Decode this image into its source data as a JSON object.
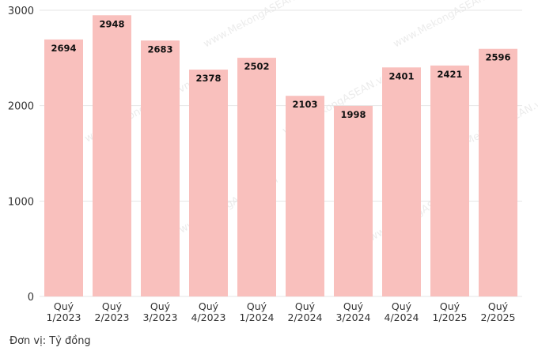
{
  "chart_data": {
    "type": "bar",
    "categories": [
      [
        "Quý",
        "1/2023"
      ],
      [
        "Quý",
        "2/2023"
      ],
      [
        "Quý",
        "3/2023"
      ],
      [
        "Quý",
        "4/2023"
      ],
      [
        "Quý",
        "1/2024"
      ],
      [
        "Quý",
        "2/2024"
      ],
      [
        "Quý",
        "3/2024"
      ],
      [
        "Quý",
        "4/2024"
      ],
      [
        "Quý",
        "1/2025"
      ],
      [
        "Quý",
        "2/2025"
      ]
    ],
    "values": [
      2694,
      2948,
      2683,
      2378,
      2502,
      2103,
      1998,
      2401,
      2421,
      2596
    ],
    "ylim": [
      0,
      3000
    ],
    "yticks": [
      0,
      1000,
      2000,
      3000
    ],
    "grid": true,
    "bar_color": "#f9c0bd",
    "grid_color": "#e6e6e6",
    "data_labels": true
  },
  "unit_note": "Đơn vị: Tỷ đồng",
  "watermark": "www.MekongASEAN.vn"
}
